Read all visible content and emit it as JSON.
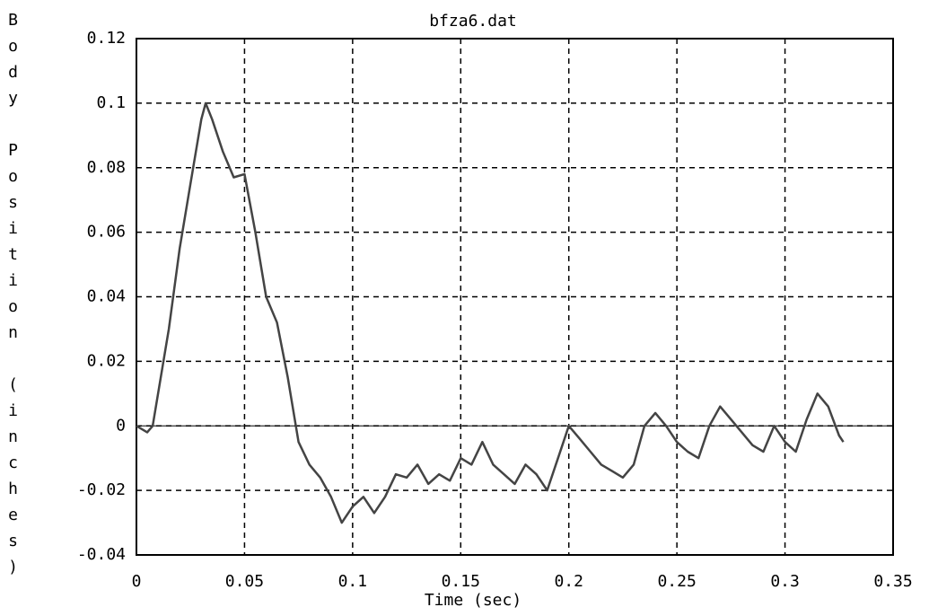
{
  "chart_data": {
    "type": "line",
    "title": "bfza6.dat",
    "x_label": "Time (sec)",
    "y_label": "Body Position (inches)",
    "x": [
      0,
      0.005,
      0.0075,
      0.01,
      0.015,
      0.02,
      0.025,
      0.03,
      0.032,
      0.035,
      0.04,
      0.045,
      0.05,
      0.055,
      0.06,
      0.065,
      0.07,
      0.075,
      0.08,
      0.085,
      0.09,
      0.095,
      0.1,
      0.105,
      0.11,
      0.115,
      0.12,
      0.125,
      0.13,
      0.135,
      0.14,
      0.145,
      0.15,
      0.155,
      0.16,
      0.165,
      0.17,
      0.175,
      0.18,
      0.185,
      0.19,
      0.195,
      0.2,
      0.205,
      0.21,
      0.215,
      0.22,
      0.225,
      0.23,
      0.235,
      0.24,
      0.245,
      0.25,
      0.255,
      0.26,
      0.265,
      0.27,
      0.275,
      0.28,
      0.285,
      0.29,
      0.295,
      0.3,
      0.305,
      0.31,
      0.315,
      0.32,
      0.325,
      0.327
    ],
    "values": [
      0.0,
      -0.002,
      0.0,
      0.01,
      0.03,
      0.055,
      0.075,
      0.095,
      0.1,
      0.095,
      0.085,
      0.077,
      0.078,
      0.06,
      0.04,
      0.032,
      0.015,
      -0.005,
      -0.012,
      -0.016,
      -0.022,
      -0.03,
      -0.025,
      -0.022,
      -0.027,
      -0.022,
      -0.015,
      -0.016,
      -0.012,
      -0.018,
      -0.015,
      -0.017,
      -0.01,
      -0.012,
      -0.005,
      -0.012,
      -0.015,
      -0.018,
      -0.012,
      -0.015,
      -0.02,
      -0.01,
      0.0,
      -0.004,
      -0.008,
      -0.012,
      -0.014,
      -0.016,
      -0.012,
      0.0,
      0.004,
      0.0,
      -0.005,
      -0.008,
      -0.01,
      0.0,
      0.006,
      0.002,
      -0.002,
      -0.006,
      -0.008,
      0.0,
      -0.005,
      -0.008,
      0.002,
      0.01,
      0.006,
      -0.003,
      -0.005
    ],
    "color": "#444444",
    "xlim": [
      0,
      0.35
    ],
    "xticks": [
      0,
      0.05,
      0.1,
      0.15,
      0.2,
      0.25,
      0.3,
      0.35
    ],
    "ylim": [
      -0.04,
      0.12
    ],
    "yticks": [
      -0.04,
      -0.02,
      0,
      0.02,
      0.04,
      0.06,
      0.08,
      0.1,
      0.12
    ],
    "grid": true,
    "zero_line": true
  }
}
